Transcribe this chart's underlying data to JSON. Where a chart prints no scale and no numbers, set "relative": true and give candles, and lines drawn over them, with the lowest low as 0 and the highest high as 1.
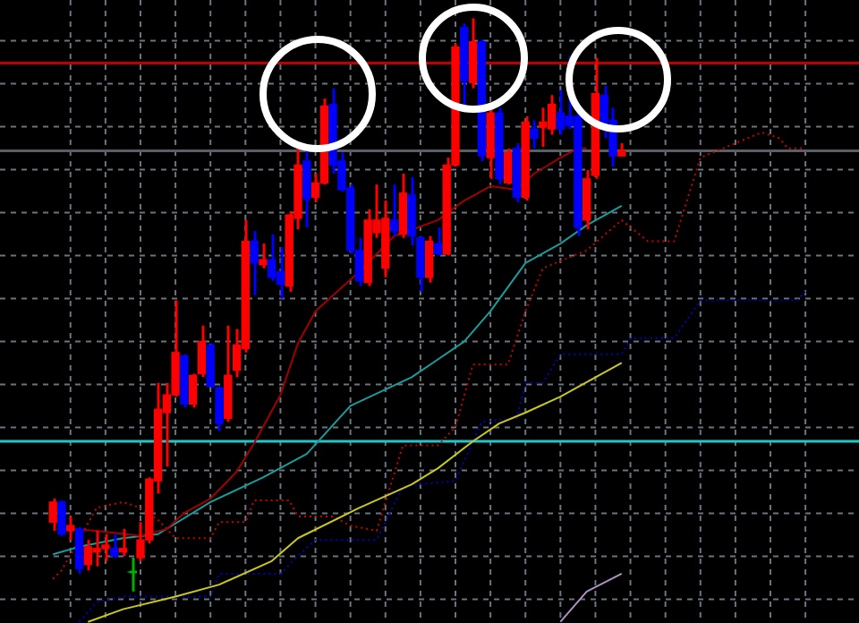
{
  "chart_data": {
    "type": "candlestick",
    "relative": true,
    "grid": true,
    "legend": false,
    "marker": "none",
    "categories": [
      null,
      null,
      null,
      null,
      null,
      null,
      null,
      null,
      null,
      null,
      null,
      null,
      null,
      null,
      null,
      null,
      null,
      null,
      null,
      null,
      null,
      null,
      null,
      null,
      null,
      null,
      null,
      null,
      null,
      null,
      null,
      null,
      null,
      null,
      null,
      null,
      null,
      null,
      null,
      null,
      null,
      null,
      null,
      null,
      null,
      null,
      null,
      null,
      null,
      null,
      null,
      null,
      null,
      null,
      null,
      null,
      null,
      null,
      null,
      null,
      null,
      null,
      null,
      null,
      null,
      null,
      null,
      null,
      null,
      null,
      null,
      null,
      null,
      null,
      null,
      null,
      null,
      null,
      null,
      null,
      null,
      null,
      null,
      null,
      null,
      null,
      null
    ],
    "ohlc": [
      [
        0.121,
        0.162,
        0.106,
        0.156
      ],
      [
        0.156,
        0.159,
        0.097,
        0.1
      ],
      [
        0.106,
        0.131,
        0.09,
        0.115
      ],
      [
        0.109,
        0.112,
        0.031,
        0.04
      ],
      [
        0.047,
        0.09,
        0.037,
        0.078
      ],
      [
        0.069,
        0.106,
        0.044,
        0.075
      ],
      [
        0.075,
        0.1,
        0.053,
        0.081
      ],
      [
        0.075,
        0.1,
        0.059,
        0.062
      ],
      [
        0.069,
        0.109,
        0.062,
        0.075
      ],
      [
        0.034,
        0.059,
        0,
        0.034
      ],
      [
        0.059,
        0.121,
        0.053,
        0.09
      ],
      [
        0.09,
        0.199,
        0.084,
        0.196
      ],
      [
        0.193,
        0.364,
        0.171,
        0.318
      ],
      [
        0.312,
        0.364,
        0.218,
        0.343
      ],
      [
        0.343,
        0.508,
        0.34,
        0.417
      ],
      [
        0.411,
        0.414,
        0.321,
        0.327
      ],
      [
        0.327,
        0.38,
        0.321,
        0.377
      ],
      [
        0.38,
        0.464,
        0.374,
        0.436
      ],
      [
        0.43,
        0.433,
        0.355,
        0.358
      ],
      [
        0.355,
        0.358,
        0.28,
        0.293
      ],
      [
        0.302,
        0.464,
        0.296,
        0.377
      ],
      [
        0.386,
        0.458,
        0.374,
        0.43
      ],
      [
        0.424,
        0.648,
        0.417,
        0.611
      ],
      [
        0.611,
        0.629,
        0.517,
        0.573
      ],
      [
        0.57,
        0.607,
        0.564,
        0.579
      ],
      [
        0.579,
        0.623,
        0.542,
        0.548
      ],
      [
        0.558,
        0.601,
        0.511,
        0.536
      ],
      [
        0.533,
        0.663,
        0.523,
        0.657
      ],
      [
        0.651,
        0.776,
        0.632,
        0.744
      ],
      [
        0.751,
        0.776,
        0.635,
        0.685
      ],
      [
        0.688,
        0.729,
        0.679,
        0.713
      ],
      [
        0.713,
        0.86,
        0.71,
        0.847
      ],
      [
        0.85,
        0.878,
        0.729,
        0.744
      ],
      [
        0.751,
        0.766,
        0.698,
        0.701
      ],
      [
        0.704,
        0.71,
        0.589,
        0.595
      ],
      [
        0.595,
        0.617,
        0.533,
        0.542
      ],
      [
        0.539,
        0.667,
        0.533,
        0.648
      ],
      [
        0.626,
        0.71,
        0.617,
        0.648
      ],
      [
        0.564,
        0.682,
        0.548,
        0.651
      ],
      [
        0.648,
        0.71,
        0.62,
        0.629
      ],
      [
        0.623,
        0.729,
        0.617,
        0.695
      ],
      [
        0.692,
        0.723,
        0.604,
        0.62
      ],
      [
        0.617,
        0.62,
        0.523,
        0.548
      ],
      [
        0.548,
        0.62,
        0.539,
        0.611
      ],
      [
        0.607,
        0.635,
        0.586,
        0.589
      ],
      [
        0.589,
        0.757,
        0.586,
        0.744
      ],
      [
        0.744,
        0.956,
        0.741,
        0.95
      ],
      [
        0.984,
        0.991,
        0.844,
        0.891
      ],
      [
        0.888,
        1,
        0.878,
        0.959
      ],
      [
        0.959,
        0.963,
        0.751,
        0.76
      ],
      [
        0.757,
        0.85,
        0.72,
        0.835
      ],
      [
        0.835,
        0.844,
        0.71,
        0.72
      ],
      [
        0.713,
        0.773,
        0.71,
        0.766
      ],
      [
        0.773,
        0.782,
        0.679,
        0.688
      ],
      [
        0.688,
        0.829,
        0.682,
        0.819
      ],
      [
        0.807,
        0.822,
        0.773,
        0.791
      ],
      [
        0.81,
        0.844,
        0.776,
        0.819
      ],
      [
        0.807,
        0.866,
        0.797,
        0.85
      ],
      [
        0.835,
        0.875,
        0.797,
        0.807
      ],
      [
        0.829,
        0.934,
        0.807,
        0.813
      ],
      [
        0.829,
        0.838,
        0.62,
        0.635
      ],
      [
        0.648,
        0.735,
        0.632,
        0.72
      ],
      [
        0.726,
        0.931,
        0.72,
        0.869
      ],
      [
        0.866,
        0.882,
        0.791,
        0.819
      ],
      [
        0.822,
        0.844,
        0.741,
        0.76
      ],
      [
        0.76,
        0.782,
        0.76,
        0.769
      ],
      null,
      null,
      null,
      null,
      null,
      null,
      null,
      null,
      null,
      null,
      null,
      null,
      null,
      null,
      null,
      null,
      null,
      null,
      null,
      null,
      null
    ],
    "colors": [
      "#ff0000",
      "#0000ff",
      "#ff0000",
      "#0000ff",
      "#ff0000",
      "#ff0000",
      "#ff0000",
      "#0000ff",
      "#ff0000",
      "#00b000",
      "#ff0000",
      "#ff0000",
      "#ff0000",
      "#ff0000",
      "#ff0000",
      "#0000ff",
      "#ff0000",
      "#ff0000",
      "#0000ff",
      "#0000ff",
      "#ff0000",
      "#ff0000",
      "#ff0000",
      "#0000ff",
      "#ff0000",
      "#0000ff",
      "#0000ff",
      "#ff0000",
      "#ff0000",
      "#0000ff",
      "#ff0000",
      "#ff0000",
      "#0000ff",
      "#0000ff",
      "#0000ff",
      "#0000ff",
      "#ff0000",
      "#ff0000",
      "#ff0000",
      "#0000ff",
      "#ff0000",
      "#0000ff",
      "#0000ff",
      "#ff0000",
      "#0000ff",
      "#ff0000",
      "#ff0000",
      "#0000ff",
      "#ff0000",
      "#0000ff",
      "#ff0000",
      "#0000ff",
      "#ff0000",
      "#0000ff",
      "#ff0000",
      "#0000ff",
      "#ff0000",
      "#ff0000",
      "#0000ff",
      "#0000ff",
      "#0000ff",
      "#ff0000",
      "#ff0000",
      "#0000ff",
      "#0000ff",
      "#ff0000",
      null,
      null,
      null,
      null,
      null,
      null,
      null,
      null,
      null,
      null,
      null,
      null,
      null,
      null,
      null,
      null,
      null,
      null,
      null,
      null,
      null
    ],
    "series": [
      {
        "type": "line",
        "color": "#a00000",
        "values": [
          null,
          null,
          0.109,
          null,
          null,
          0.106,
          null,
          null,
          null,
          null,
          0.097,
          null,
          null,
          0.109,
          null,
          0.137,
          null,
          null,
          0.162,
          null,
          null,
          0.209,
          null,
          0.259,
          null,
          null,
          0.343,
          null,
          0.433,
          null,
          0.489,
          null,
          null,
          null,
          null,
          0.558,
          null,
          null,
          null,
          0.62,
          null,
          null,
          null,
          null,
          0.648,
          null,
          null,
          0.682,
          null,
          null,
          0.707,
          null,
          null,
          0.701,
          null,
          0.729,
          null,
          null,
          0.757,
          null,
          0.773,
          0.773,
          null,
          null,
          null,
          null,
          null,
          null,
          null,
          null,
          null,
          null,
          null,
          null,
          null,
          null,
          null,
          null,
          null,
          null,
          null,
          null,
          null,
          null,
          null,
          null,
          null
        ]
      },
      {
        "type": "line",
        "color": "#1a9c9c",
        "values": [
          0.065,
          null,
          null,
          0.078,
          null,
          null,
          null,
          null,
          0.093,
          null,
          null,
          null,
          0.1,
          null,
          null,
          null,
          null,
          null,
          0.156,
          null,
          null,
          null,
          null,
          null,
          0.199,
          null,
          null,
          null,
          null,
          0.24,
          null,
          null,
          null,
          null,
          0.324,
          null,
          null,
          null,
          null,
          null,
          null,
          0.374,
          null,
          null,
          0.405,
          null,
          null,
          0.436,
          null,
          null,
          0.489,
          null,
          null,
          null,
          0.573,
          null,
          null,
          null,
          0.607,
          null,
          null,
          0.639,
          null,
          null,
          null,
          0.673,
          null,
          null,
          null,
          null,
          null,
          null,
          null,
          null,
          null,
          null,
          null,
          null,
          null,
          null,
          null,
          null,
          null,
          null,
          null,
          null,
          null
        ]
      },
      {
        "type": "line",
        "color": "#c8c820",
        "values": [
          null,
          null,
          null,
          null,
          -0.053,
          null,
          null,
          null,
          -0.031,
          null,
          null,
          null,
          null,
          null,
          -0.009,
          null,
          null,
          null,
          null,
          0.012,
          null,
          null,
          null,
          null,
          null,
          0.053,
          null,
          null,
          0.093,
          null,
          null,
          null,
          null,
          null,
          null,
          0.146,
          null,
          null,
          null,
          null,
          null,
          0.187,
          null,
          null,
          0.215,
          null,
          null,
          null,
          0.262,
          null,
          null,
          0.293,
          null,
          null,
          0.312,
          null,
          null,
          null,
          0.34,
          null,
          null,
          null,
          null,
          null,
          null,
          0.399,
          null,
          null,
          null,
          null,
          null,
          null,
          null,
          null,
          null,
          null,
          null,
          null,
          null,
          null,
          null,
          null,
          null,
          null,
          null,
          null,
          null
        ]
      },
      {
        "type": "line",
        "color": "#b090c0",
        "values": [
          null,
          null,
          null,
          null,
          null,
          null,
          null,
          null,
          null,
          null,
          null,
          null,
          null,
          null,
          null,
          null,
          null,
          null,
          null,
          null,
          null,
          null,
          null,
          null,
          null,
          null,
          null,
          null,
          null,
          null,
          null,
          null,
          null,
          null,
          null,
          null,
          null,
          null,
          null,
          null,
          null,
          null,
          null,
          null,
          null,
          null,
          null,
          null,
          null,
          null,
          null,
          null,
          null,
          null,
          null,
          null,
          null,
          null,
          -0.053,
          null,
          null,
          0,
          null,
          null,
          null,
          0.031,
          null,
          null,
          null,
          null,
          null,
          null,
          null,
          null,
          null,
          null,
          null,
          null,
          null,
          null,
          null,
          null,
          null,
          null,
          null,
          null,
          null
        ]
      },
      {
        "type": "line",
        "color": "#d00000",
        "line_style": "dotted",
        "values": [
          0.022,
          0.037,
          null,
          null,
          null,
          0.146,
          null,
          null,
          0.156,
          null,
          0.146,
          null,
          0.125,
          null,
          0.093,
          null,
          null,
          null,
          0.093,
          0.121,
          null,
          null,
          0.121,
          0.159,
          null,
          null,
          null,
          0.159,
          0.131,
          null,
          null,
          null,
          0.131,
          null,
          0.115,
          null,
          null,
          0.106,
          null,
          null,
          0.255,
          null,
          null,
          null,
          0.255,
          null,
          0.287,
          null,
          0.396,
          null,
          null,
          null,
          0.396,
          null,
          0.489,
          null,
          0.564,
          null,
          null,
          null,
          null,
          0.595,
          null,
          null,
          null,
          0.648,
          null,
          null,
          0.611,
          null,
          null,
          0.611,
          null,
          null,
          0.757,
          null,
          null,
          null,
          0.782,
          null,
          null,
          0.801,
          null,
          0.791,
          0.773,
          null,
          0.773
        ]
      },
      {
        "type": "line",
        "color": "#0000c8",
        "line_style": "dotted",
        "values": [
          null,
          null,
          null,
          -0.053,
          null,
          -0.019,
          null,
          null,
          -0.009,
          null,
          null,
          null,
          null,
          null,
          null,
          null,
          null,
          null,
          -0.009,
          0.031,
          null,
          null,
          null,
          null,
          null,
          null,
          0.031,
          null,
          0.062,
          null,
          0.09,
          null,
          null,
          null,
          null,
          null,
          null,
          0.09,
          null,
          null,
          0.184,
          null,
          null,
          null,
          null,
          null,
          0.193,
          null,
          null,
          0.296,
          null,
          null,
          null,
          0.302,
          0.364,
          null,
          0.364,
          null,
          0.414,
          null,
          null,
          null,
          null,
          null,
          null,
          0.414,
          0.442,
          null,
          null,
          null,
          null,
          0.442,
          null,
          null,
          0.508,
          null,
          null,
          null,
          null,
          null,
          null,
          null,
          null,
          null,
          null,
          0.508,
          0.523
        ]
      }
    ],
    "ref_lines": [
      {
        "axis": "y",
        "value": 0.922,
        "color": "#c00000"
      },
      {
        "axis": "y",
        "value": 0.769,
        "color": "#5a5e66"
      },
      {
        "axis": "y",
        "value": 0.262,
        "color": "#1ec8c8"
      }
    ]
  }
}
